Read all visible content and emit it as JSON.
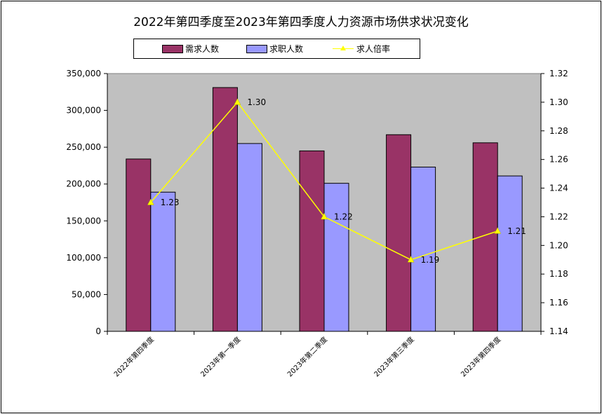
{
  "chart_data": {
    "type": "bar",
    "title": "2022年第四季度至2023年第四季度人力资源市场供求状况变化",
    "categories": [
      "2022年第四季度",
      "2023年第一季度",
      "2023年第二季度",
      "2023年第三季度",
      "2023年第四季度"
    ],
    "series": [
      {
        "name": "需求人数",
        "type": "bar",
        "axis": "left",
        "color": "#993366",
        "values": [
          234000,
          331000,
          245000,
          267000,
          256000
        ]
      },
      {
        "name": "求职人数",
        "type": "bar",
        "axis": "left",
        "color": "#9999ff",
        "values": [
          189000,
          255000,
          201000,
          223000,
          211000
        ]
      },
      {
        "name": "求人倍率",
        "type": "line",
        "axis": "right",
        "color": "#ffff00",
        "marker": "triangle",
        "values": [
          1.23,
          1.3,
          1.22,
          1.19,
          1.21
        ],
        "data_labels": [
          "1.23",
          "1.30",
          "1.22",
          "1.19",
          "1.21"
        ]
      }
    ],
    "y_left": {
      "ylim": [
        0,
        350000
      ],
      "ticks": [
        0,
        50000,
        100000,
        150000,
        200000,
        250000,
        300000,
        350000
      ],
      "tick_labels": [
        "0",
        "50,000",
        "100,000",
        "150,000",
        "200,000",
        "250,000",
        "300,000",
        "350,000"
      ]
    },
    "y_right": {
      "ylim": [
        1.14,
        1.32
      ],
      "ticks": [
        1.14,
        1.16,
        1.18,
        1.2,
        1.22,
        1.24,
        1.26,
        1.28,
        1.3,
        1.32
      ],
      "tick_labels": [
        "1.14",
        "1.16",
        "1.18",
        "1.20",
        "1.22",
        "1.24",
        "1.26",
        "1.28",
        "1.30",
        "1.32"
      ]
    },
    "xlabel": "",
    "ylabel": "",
    "grid": false,
    "legend_position": "top",
    "plot_background": "#c0c0c0"
  }
}
